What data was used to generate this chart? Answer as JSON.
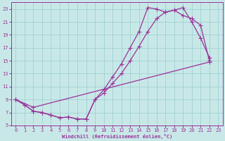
{
  "xlabel": "Windchill (Refroidissement éolien,°C)",
  "bg_color": "#c8e8e8",
  "line_color": "#993399",
  "grid_color": "#99cccc",
  "xlim": [
    -0.5,
    23.5
  ],
  "ylim": [
    5,
    24
  ],
  "xticks": [
    0,
    1,
    2,
    3,
    4,
    5,
    6,
    7,
    8,
    9,
    10,
    11,
    12,
    13,
    14,
    15,
    16,
    17,
    18,
    19,
    20,
    21,
    22,
    23
  ],
  "yticks": [
    5,
    7,
    9,
    11,
    13,
    15,
    17,
    19,
    21,
    23
  ],
  "line1_x": [
    0,
    1,
    2,
    3,
    4,
    5,
    6,
    7,
    8,
    9,
    10,
    11,
    12,
    13,
    14,
    15,
    16,
    17,
    18,
    19,
    20,
    21,
    22
  ],
  "line1_y": [
    9,
    8.2,
    7.2,
    7.0,
    6.6,
    6.2,
    6.3,
    6.0,
    6.0,
    9.0,
    10.5,
    12.5,
    14.5,
    17.0,
    19.5,
    23.2,
    23.0,
    22.5,
    22.8,
    22.0,
    21.5,
    20.5,
    15.0
  ],
  "line2_x": [
    0,
    1,
    2,
    3,
    4,
    5,
    6,
    7,
    8,
    9,
    10,
    11,
    12,
    13,
    14,
    15,
    16,
    17,
    18,
    19,
    20,
    21,
    22
  ],
  "line2_y": [
    9,
    8.2,
    7.2,
    7.0,
    6.6,
    6.2,
    6.3,
    6.0,
    6.0,
    9.0,
    10.0,
    11.5,
    13.0,
    15.0,
    17.2,
    19.5,
    21.5,
    22.5,
    22.8,
    23.2,
    21.0,
    18.5,
    15.5
  ],
  "line3_x": [
    0,
    2,
    22
  ],
  "line3_y": [
    9,
    7.8,
    14.8
  ],
  "marker": "+",
  "markersize": 4,
  "linewidth": 0.9
}
